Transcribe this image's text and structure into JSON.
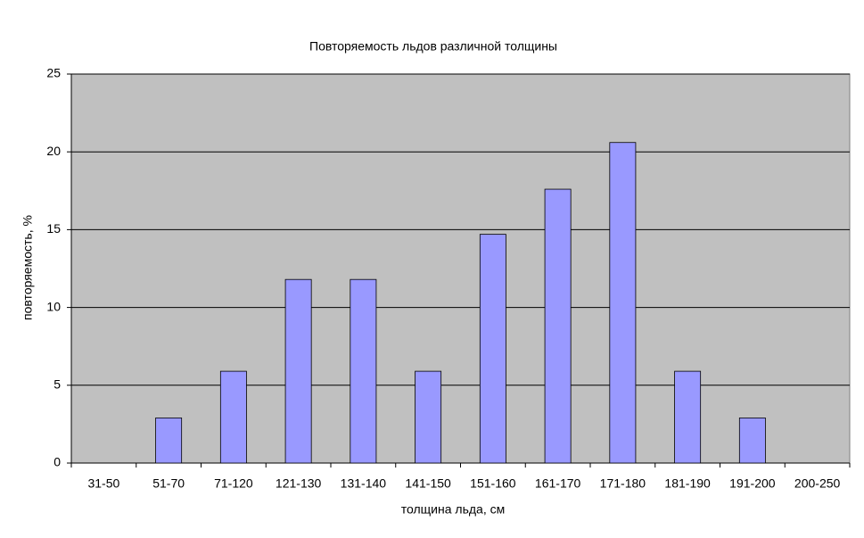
{
  "chart_data": {
    "type": "bar",
    "title": "Повторяемость льдов различной толщины",
    "x_label": "толщина льда, см",
    "y_label": "повторяемость, %",
    "categories": [
      "31-50",
      "51-70",
      "71-120",
      "121-130",
      "131-140",
      "141-150",
      "151-160",
      "161-170",
      "171-180",
      "181-190",
      "191-200",
      "200-250"
    ],
    "values": [
      0,
      2.9,
      5.9,
      11.8,
      11.8,
      5.9,
      14.7,
      17.6,
      20.6,
      5.9,
      2.9,
      0
    ],
    "color": "#9999ff",
    "plot_background": "#c0c0c0",
    "ylim": [
      0,
      25
    ],
    "yticks": [
      0,
      5,
      10,
      15,
      20,
      25
    ],
    "grid": true
  }
}
